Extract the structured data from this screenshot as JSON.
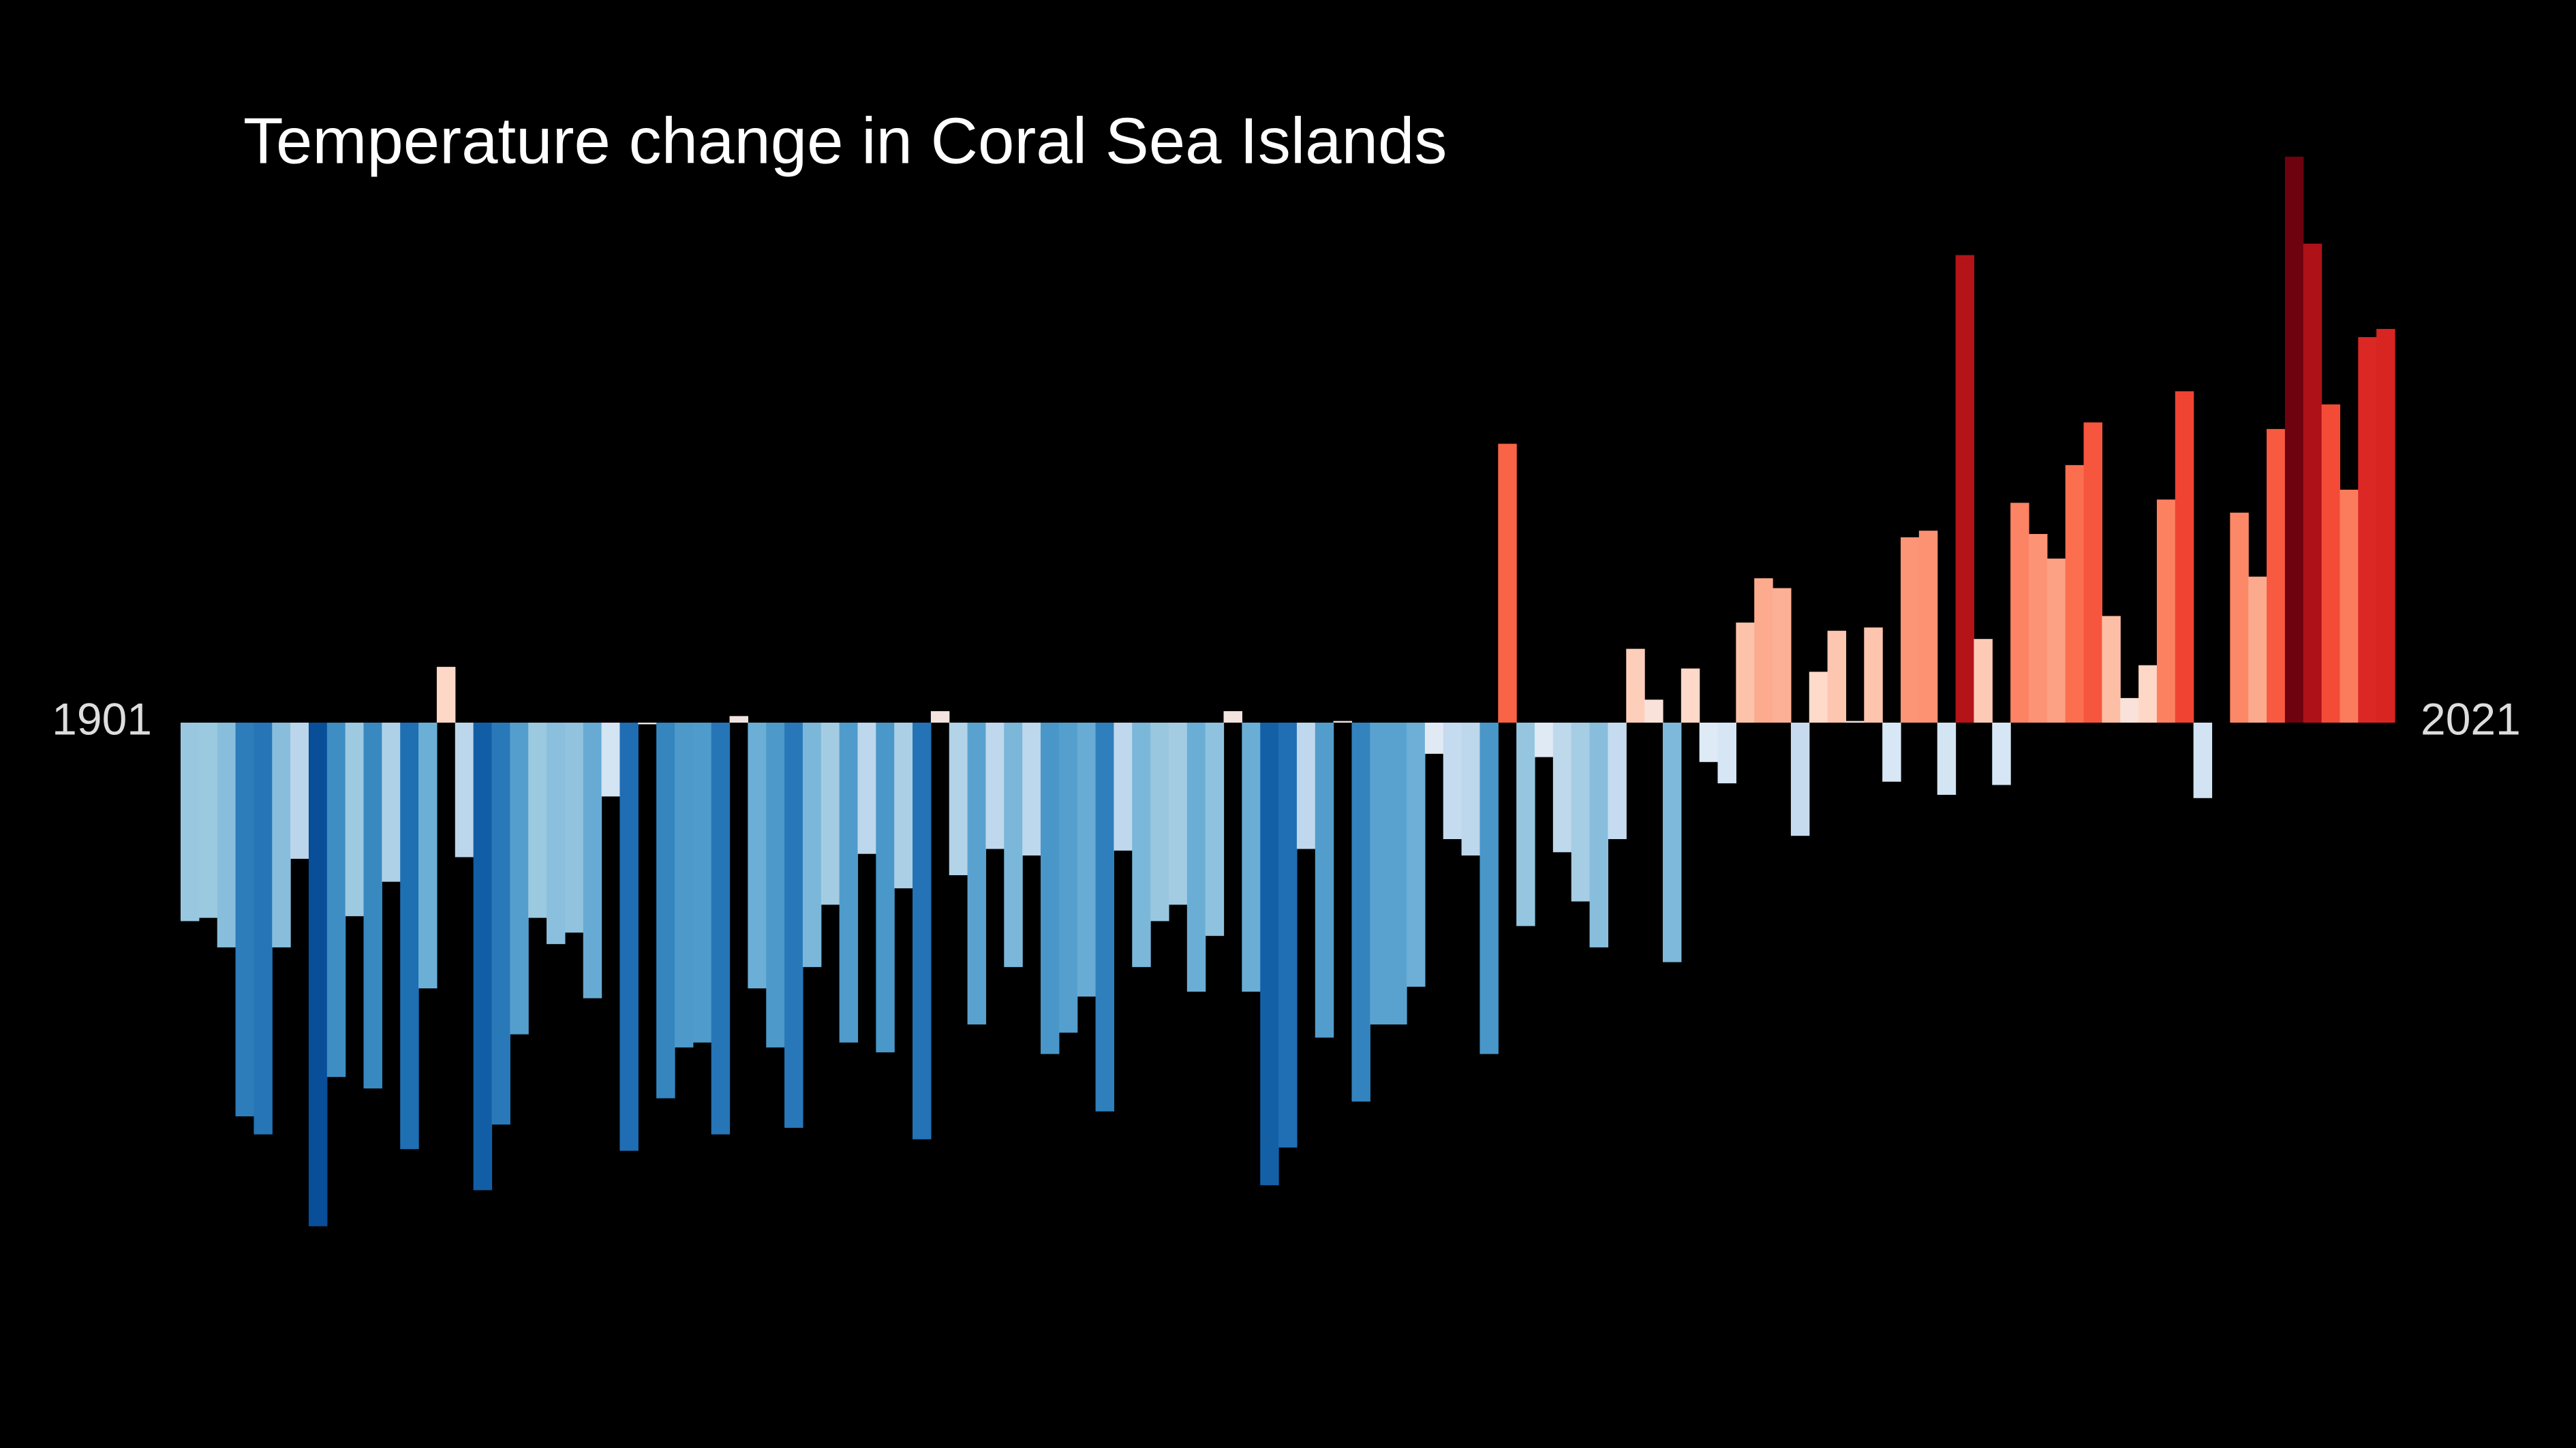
{
  "chart_data": {
    "type": "bar",
    "title": "Temperature change in Coral Sea Islands",
    "categories": [
      "1901",
      null,
      null,
      null,
      null,
      null,
      null,
      null,
      null,
      null,
      null,
      null,
      null,
      null,
      null,
      null,
      null,
      null,
      null,
      null,
      null,
      null,
      null,
      null,
      null,
      null,
      null,
      null,
      null,
      null,
      null,
      null,
      null,
      null,
      null,
      null,
      null,
      null,
      null,
      null,
      null,
      null,
      null,
      null,
      null,
      null,
      null,
      null,
      null,
      null,
      null,
      null,
      null,
      null,
      null,
      null,
      null,
      null,
      null,
      null,
      null,
      null,
      null,
      null,
      null,
      null,
      null,
      null,
      null,
      null,
      null,
      null,
      null,
      null,
      null,
      null,
      null,
      null,
      null,
      null,
      null,
      null,
      null,
      null,
      null,
      null,
      null,
      null,
      null,
      null,
      null,
      null,
      null,
      null,
      null,
      null,
      null,
      null,
      null,
      null,
      null,
      null,
      null,
      null,
      null,
      null,
      null,
      null,
      null,
      null,
      null,
      null,
      null,
      null,
      null,
      null,
      null,
      null,
      null,
      null,
      "2021"
    ],
    "values": [
      -1.21,
      -1.19,
      -1.37,
      -2.4,
      -2.51,
      -1.37,
      -0.83,
      -3.07,
      -2.16,
      -1.18,
      -2.23,
      -0.97,
      -2.6,
      -1.62,
      0.34,
      -0.82,
      -2.85,
      -2.45,
      -1.9,
      -1.19,
      -1.35,
      -1.28,
      -1.68,
      -0.45,
      -2.61,
      -0.01,
      -2.29,
      -1.98,
      -1.95,
      -2.51,
      0.04,
      -1.62,
      -1.98,
      -2.47,
      -1.49,
      -1.11,
      -1.95,
      -0.8,
      -2.01,
      -1.01,
      -2.54,
      0.07,
      -0.93,
      -1.84,
      -0.77,
      -1.49,
      -0.81,
      -2.02,
      -1.89,
      -1.67,
      -2.37,
      -0.78,
      -1.49,
      -1.21,
      -1.11,
      -1.64,
      -1.3,
      0.07,
      -1.64,
      -2.82,
      -2.59,
      -0.77,
      -1.92,
      0.01,
      -2.31,
      -1.84,
      -1.84,
      -1.61,
      -0.19,
      -0.71,
      -0.81,
      -2.02,
      1.7,
      -1.24,
      -0.21,
      -0.79,
      -1.09,
      -1.37,
      -0.71,
      0.45,
      0.14,
      -1.46,
      0.33,
      -0.24,
      -0.37,
      0.61,
      0.88,
      0.82,
      -0.69,
      0.31,
      0.56,
      0.01,
      0.58,
      -0.36,
      1.13,
      1.17,
      -0.44,
      2.85,
      0.51,
      -0.38,
      1.34,
      1.15,
      1.0,
      1.57,
      1.83,
      0.65,
      0.15,
      0.35,
      1.36,
      2.02,
      -0.46,
      0.0,
      1.28,
      0.89,
      1.79,
      3.45,
      2.92,
      1.94,
      1.42,
      2.35,
      2.4
    ],
    "ylim": [
      -3.5,
      3.5
    ],
    "colormap": [
      "#08306b",
      "#08519c",
      "#2171b5",
      "#4292c6",
      "#6baed6",
      "#9ecae1",
      "#c6dbef",
      "#deebf7",
      "#fee0d2",
      "#fcbba1",
      "#fc9272",
      "#fb6a4a",
      "#ef3b2c",
      "#cb181d",
      "#a50f15",
      "#67000d"
    ],
    "background": "#000000"
  }
}
